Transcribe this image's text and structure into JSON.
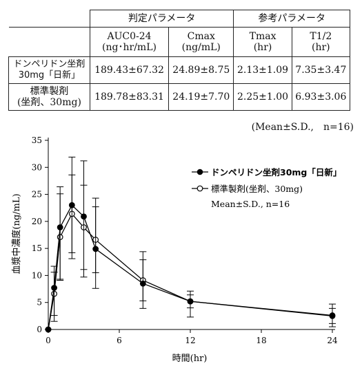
{
  "table": {
    "group_primary": "判定パラメータ",
    "group_reference": "参考パラメータ",
    "columns": [
      {
        "name": "AUC0-24",
        "unit": "(ng･hr/mL)"
      },
      {
        "name": "Cmax",
        "unit": "(ng/mL)"
      },
      {
        "name": "Tmax",
        "unit": "(hr)"
      },
      {
        "name": "T1/2",
        "unit": "(hr)"
      }
    ],
    "rows": [
      {
        "label_line1": "ドンペリドン坐剤",
        "label_line2": "30mg「日新」",
        "values": [
          "189.43±67.32",
          "24.89±8.75",
          "2.13±1.09",
          "7.35±3.47"
        ]
      },
      {
        "label_line1": "標準製剤",
        "label_line2": "(坐剤、30mg)",
        "values": [
          "189.78±83.31",
          "24.19±7.70",
          "2.25±1.00",
          "6.93±3.06"
        ]
      }
    ],
    "note": "(Mean±S.D.,　n=16)"
  },
  "chart_data": {
    "type": "line",
    "xlabel": "時間(hr)",
    "ylabel": "血漿中濃度(ng/mL)",
    "xlim": [
      0,
      24
    ],
    "ylim": [
      0,
      35
    ],
    "xticks": [
      0,
      6,
      12,
      18,
      24
    ],
    "yticks": [
      0,
      5,
      10,
      15,
      20,
      25,
      30,
      35
    ],
    "legend_position": "top-right",
    "legend_note": "Mean±S.D., n=16",
    "series": [
      {
        "name": "ドンペリドン坐剤30mg「日新」",
        "marker": "filled-circle",
        "color": "#000000",
        "x": [
          0,
          0.5,
          1,
          2,
          3,
          4,
          8,
          12,
          24
        ],
        "y": [
          0,
          7.7,
          18.9,
          23.0,
          20.9,
          14.9,
          8.5,
          5.2,
          2.6
        ],
        "sd_upper": [
          0,
          11.7,
          26.4,
          31.9,
          31.2,
          24.3,
          14.4,
          7.1,
          4.7
        ],
        "sd_lower": [
          0,
          1.5,
          9.3,
          13.1,
          9.7,
          7.6,
          3.9,
          2.3,
          0.5
        ]
      },
      {
        "name": "標準製剤(坐剤、30mg)",
        "marker": "open-circle",
        "color": "#000000",
        "x": [
          0,
          0.5,
          1,
          2,
          3,
          4,
          8,
          12,
          24
        ],
        "y": [
          0,
          6.6,
          17.1,
          21.4,
          18.9,
          16.6,
          9.1,
          5.2,
          2.5
        ],
        "sd_upper": [
          0,
          10.6,
          25.1,
          28.6,
          26.7,
          22.7,
          12.9,
          6.4,
          3.9
        ],
        "sd_lower": [
          0,
          2.6,
          9.1,
          14.2,
          11.1,
          10.5,
          5.3,
          4.0,
          1.1
        ]
      }
    ]
  }
}
